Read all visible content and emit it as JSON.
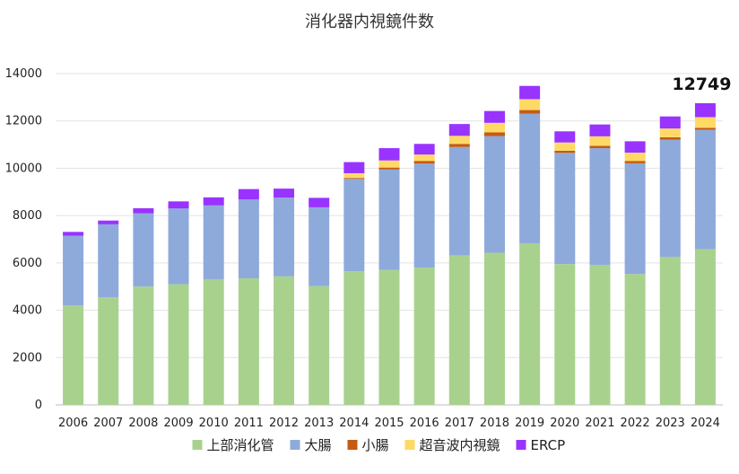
{
  "chart_data": {
    "type": "bar",
    "stacked": true,
    "title": "消化器内視鏡件数",
    "xlabel": "",
    "ylabel": "",
    "ylim": [
      0,
      14000
    ],
    "yticks": [
      0,
      2000,
      4000,
      6000,
      8000,
      10000,
      12000,
      14000
    ],
    "grid": true,
    "legend_position": "bottom",
    "categories": [
      "2006",
      "2007",
      "2008",
      "2009",
      "2010",
      "2011",
      "2012",
      "2013",
      "2014",
      "2015",
      "2016",
      "2017",
      "2018",
      "2019",
      "2020",
      "2021",
      "2022",
      "2023",
      "2024"
    ],
    "series": [
      {
        "name": "上部消化管",
        "color": "#a9d18e",
        "values": [
          4200,
          4550,
          5000,
          5100,
          5300,
          5350,
          5430,
          5020,
          5650,
          5700,
          5800,
          6320,
          6430,
          6830,
          5950,
          5920,
          5530,
          6260,
          6580
        ]
      },
      {
        "name": "大腸",
        "color": "#8eaadb",
        "values": [
          2950,
          3080,
          3100,
          3200,
          3130,
          3330,
          3330,
          3330,
          3900,
          4250,
          4400,
          4580,
          4930,
          5480,
          4700,
          4930,
          4680,
          4950,
          5050
        ]
      },
      {
        "name": "小腸",
        "color": "#c55a11",
        "values": [
          0,
          0,
          0,
          0,
          0,
          0,
          0,
          0,
          40,
          80,
          110,
          130,
          160,
          150,
          90,
          100,
          100,
          100,
          80
        ]
      },
      {
        "name": "超音波内視鏡",
        "color": "#ffd966",
        "values": [
          0,
          0,
          0,
          0,
          0,
          0,
          0,
          0,
          200,
          300,
          270,
          340,
          400,
          460,
          350,
          400,
          350,
          370,
          450
        ]
      },
      {
        "name": "ERCP",
        "color": "#9933ff",
        "values": [
          160,
          160,
          210,
          300,
          340,
          440,
          380,
          400,
          470,
          520,
          450,
          500,
          500,
          560,
          470,
          500,
          480,
          510,
          589
        ]
      }
    ],
    "annotations": [
      {
        "category": "2024",
        "text": "12749"
      }
    ]
  }
}
